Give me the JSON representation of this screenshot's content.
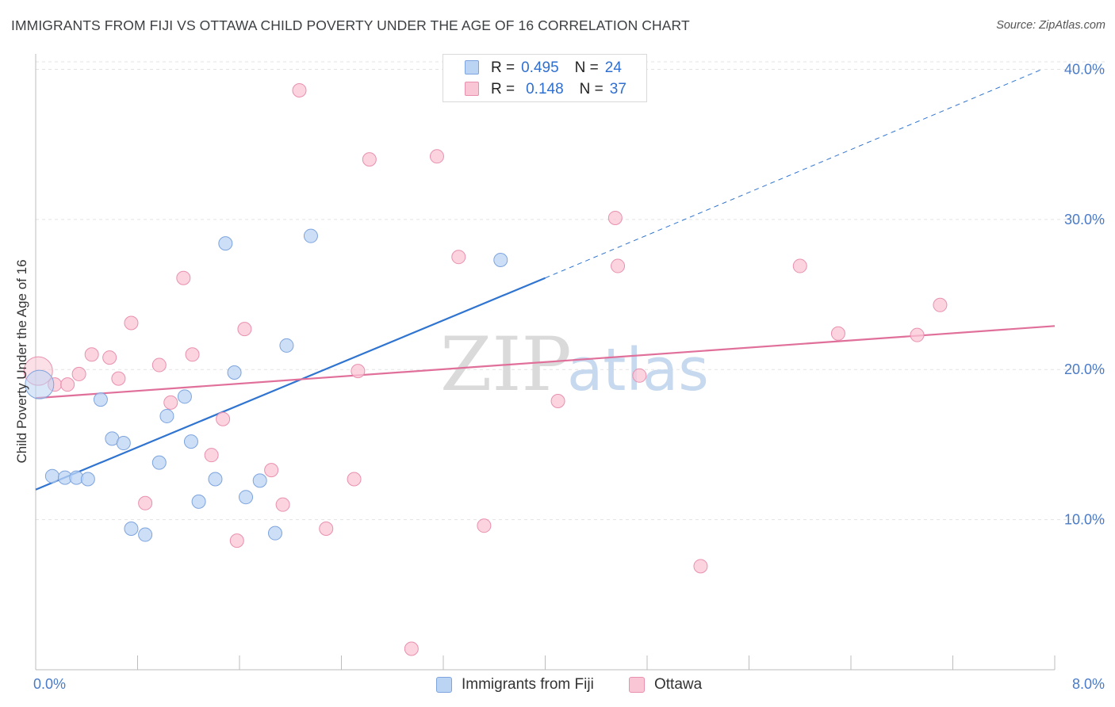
{
  "header": {
    "title": "IMMIGRANTS FROM FIJI VS OTTAWA CHILD POVERTY UNDER THE AGE OF 16 CORRELATION CHART",
    "source": "Source: ZipAtlas.com"
  },
  "colors": {
    "fiji_fill": "#bcd4f4",
    "fiji_stroke": "#7da4de",
    "fiji_line": "#2f74d0",
    "ottawa_fill": "#f9c6d6",
    "ottawa_stroke": "#e990ae",
    "ottawa_line": "#e0709a",
    "axis_label": "#4a7bc8",
    "grid": "#e3e3e3"
  },
  "legend": {
    "rows": [
      {
        "r_label": "R =",
        "r_value": "0.495",
        "n_label": "N =",
        "n_value": "24"
      },
      {
        "r_label": "R =",
        "r_value": "0.148",
        "n_label": "N =",
        "n_value": "37"
      }
    ]
  },
  "bottom_legend": {
    "items": [
      {
        "label": "Immigrants from Fiji"
      },
      {
        "label": "Ottawa"
      }
    ]
  },
  "watermark": {
    "zip": "ZIP",
    "atlas": "atlas"
  },
  "chart_data": {
    "type": "scatter",
    "title": "IMMIGRANTS FROM FIJI VS OTTAWA CHILD POVERTY UNDER THE AGE OF 16 CORRELATION CHART",
    "xlabel": "",
    "ylabel": "Child Poverty Under the Age of 16",
    "xlim": [
      0,
      8
    ],
    "ylim": [
      0,
      40.5
    ],
    "x_tick_labels": [
      {
        "value": 0,
        "label": "0.0%"
      },
      {
        "value": 8,
        "label": "8.0%"
      }
    ],
    "y_tick_labels": [
      {
        "value": 10,
        "label": "10.0%"
      },
      {
        "value": 20,
        "label": "20.0%"
      },
      {
        "value": 30,
        "label": "30.0%"
      },
      {
        "value": 40,
        "label": "40.0%"
      }
    ],
    "series": [
      {
        "name": "Immigrants from Fiji",
        "R": 0.495,
        "N": 24,
        "points": [
          {
            "x": 0.03,
            "y": 19.0,
            "big": true
          },
          {
            "x": 0.13,
            "y": 12.9
          },
          {
            "x": 0.23,
            "y": 12.8
          },
          {
            "x": 0.32,
            "y": 12.8
          },
          {
            "x": 0.41,
            "y": 12.7
          },
          {
            "x": 0.51,
            "y": 18.0
          },
          {
            "x": 0.6,
            "y": 15.4
          },
          {
            "x": 0.69,
            "y": 15.1
          },
          {
            "x": 0.75,
            "y": 9.4
          },
          {
            "x": 0.86,
            "y": 9.0
          },
          {
            "x": 0.97,
            "y": 13.8
          },
          {
            "x": 1.03,
            "y": 16.9
          },
          {
            "x": 1.17,
            "y": 18.2
          },
          {
            "x": 1.22,
            "y": 15.2
          },
          {
            "x": 1.28,
            "y": 11.2
          },
          {
            "x": 1.41,
            "y": 12.7
          },
          {
            "x": 1.49,
            "y": 28.4
          },
          {
            "x": 1.56,
            "y": 19.8
          },
          {
            "x": 1.65,
            "y": 11.5
          },
          {
            "x": 1.76,
            "y": 12.6
          },
          {
            "x": 1.88,
            "y": 9.1
          },
          {
            "x": 1.97,
            "y": 21.6
          },
          {
            "x": 2.16,
            "y": 28.9
          },
          {
            "x": 3.65,
            "y": 27.3
          }
        ],
        "trendline": {
          "x0": 0,
          "y0": 12.0,
          "x1": 4.0,
          "y1": 26.1,
          "dashed_to": {
            "x": 7.9,
            "y": 40.0
          }
        }
      },
      {
        "name": "Ottawa",
        "R": 0.148,
        "N": 37,
        "points": [
          {
            "x": 0.02,
            "y": 19.9,
            "big": true
          },
          {
            "x": 0.15,
            "y": 19.0
          },
          {
            "x": 0.25,
            "y": 19.0
          },
          {
            "x": 0.34,
            "y": 19.7
          },
          {
            "x": 0.44,
            "y": 21.0
          },
          {
            "x": 0.58,
            "y": 20.8
          },
          {
            "x": 0.65,
            "y": 19.4
          },
          {
            "x": 0.75,
            "y": 23.1
          },
          {
            "x": 0.86,
            "y": 11.1
          },
          {
            "x": 0.97,
            "y": 20.3
          },
          {
            "x": 1.06,
            "y": 17.8
          },
          {
            "x": 1.16,
            "y": 26.1
          },
          {
            "x": 1.23,
            "y": 21.0
          },
          {
            "x": 1.38,
            "y": 14.3
          },
          {
            "x": 1.47,
            "y": 16.7
          },
          {
            "x": 1.58,
            "y": 8.6
          },
          {
            "x": 1.64,
            "y": 22.7
          },
          {
            "x": 1.85,
            "y": 13.3
          },
          {
            "x": 1.94,
            "y": 11.0
          },
          {
            "x": 2.07,
            "y": 38.6
          },
          {
            "x": 2.28,
            "y": 9.4
          },
          {
            "x": 2.5,
            "y": 12.7
          },
          {
            "x": 2.53,
            "y": 19.9
          },
          {
            "x": 2.62,
            "y": 34.0
          },
          {
            "x": 2.95,
            "y": 1.4
          },
          {
            "x": 3.15,
            "y": 34.2
          },
          {
            "x": 3.32,
            "y": 27.5
          },
          {
            "x": 3.52,
            "y": 9.6
          },
          {
            "x": 4.1,
            "y": 17.9
          },
          {
            "x": 4.55,
            "y": 30.1
          },
          {
            "x": 4.57,
            "y": 26.9
          },
          {
            "x": 4.74,
            "y": 19.6
          },
          {
            "x": 5.22,
            "y": 6.9
          },
          {
            "x": 6.0,
            "y": 26.9
          },
          {
            "x": 6.3,
            "y": 22.4
          },
          {
            "x": 6.92,
            "y": 22.3
          },
          {
            "x": 7.1,
            "y": 24.3
          }
        ],
        "trendline": {
          "x0": 0,
          "y0": 18.1,
          "x1": 8.0,
          "y1": 22.9
        }
      }
    ]
  }
}
